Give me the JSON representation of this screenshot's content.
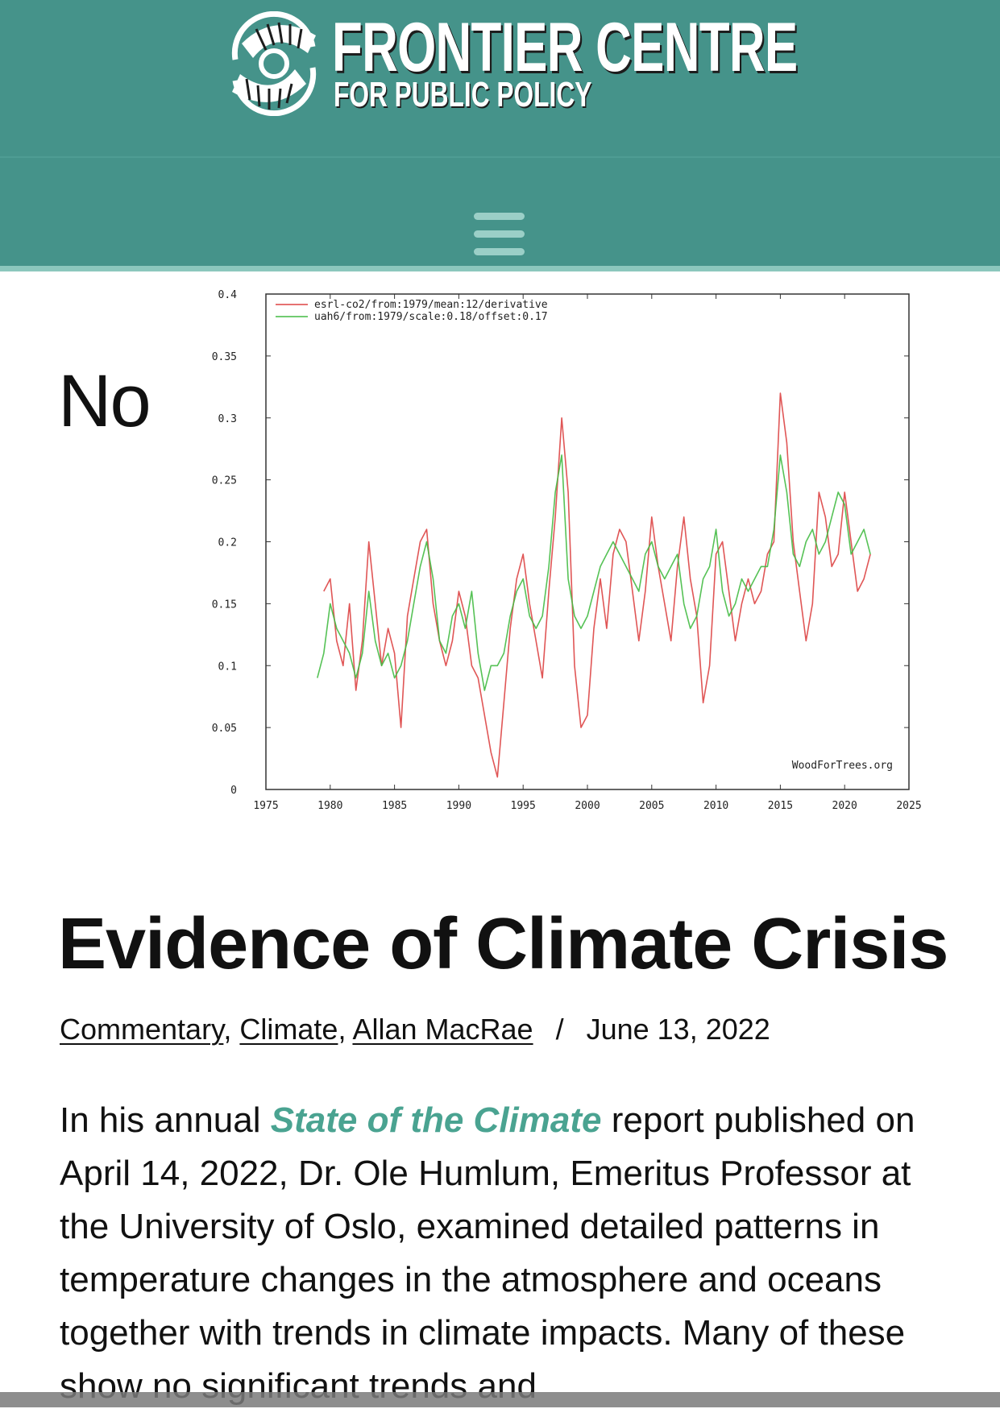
{
  "site": {
    "name_line1": "FRONTIER CENTRE",
    "name_line2": "FOR PUBLIC POLICY",
    "logo_icon": "swirl-logo-icon",
    "brand_color": "#45938a",
    "menu_icon": "hamburger-menu-icon"
  },
  "article": {
    "label": "No",
    "title": "Evidence of Climate Crisis",
    "categories": [
      "Commentary",
      "Climate"
    ],
    "author": "Allan MacRae",
    "separator": "/",
    "date": "June 13, 2022",
    "body_pre": "In his annual ",
    "body_link": "State of the Climate",
    "body_post": " report published on April 14, 2022, Dr. Ole Humlum, Emeritus Professor at the University of Oslo, examined detailed patterns in temperature changes in the atmosphere and oceans together with trends in climate impacts. Many of these show no significant trends and",
    "link_color": "#4aa391"
  },
  "chart_data": {
    "type": "line",
    "xlim": [
      1975,
      2025
    ],
    "ylim": [
      0,
      0.4
    ],
    "x_ticks": [
      "1975",
      "1980",
      "1985",
      "1990",
      "1995",
      "2000",
      "2005",
      "2010",
      "2015",
      "2020",
      "2025"
    ],
    "y_ticks": [
      "0",
      "0.05",
      "0.1",
      "0.15",
      "0.2",
      "0.25",
      "0.3",
      "0.35",
      "0.4"
    ],
    "legend_placement": "top-left",
    "watermark": "WoodForTrees.org",
    "series": [
      {
        "name": "esrl-co2/from:1979/mean:12/derivative",
        "color": "#dd4444",
        "x": [
          1979.5,
          1980,
          1980.5,
          1981,
          1981.5,
          1982,
          1982.5,
          1983,
          1983.5,
          1984,
          1984.5,
          1985,
          1985.5,
          1986,
          1986.5,
          1987,
          1987.5,
          1988,
          1988.5,
          1989,
          1989.5,
          1990,
          1990.5,
          1991,
          1991.5,
          1992,
          1992.5,
          1993,
          1993.5,
          1994,
          1994.5,
          1995,
          1995.5,
          1996,
          1996.5,
          1997,
          1997.5,
          1998,
          1998.5,
          1999,
          1999.5,
          2000,
          2000.5,
          2001,
          2001.5,
          2002,
          2002.5,
          2003,
          2003.5,
          2004,
          2004.5,
          2005,
          2005.5,
          2006,
          2006.5,
          2007,
          2007.5,
          2008,
          2008.5,
          2009,
          2009.5,
          2010,
          2010.5,
          2011,
          2011.5,
          2012,
          2012.5,
          2013,
          2013.5,
          2014,
          2014.5,
          2015,
          2015.5,
          2016,
          2016.5,
          2017,
          2017.5,
          2018,
          2018.5,
          2019,
          2019.5,
          2020,
          2020.5,
          2021,
          2021.5,
          2022
        ],
        "y": [
          0.16,
          0.17,
          0.12,
          0.1,
          0.15,
          0.08,
          0.12,
          0.2,
          0.15,
          0.1,
          0.13,
          0.11,
          0.05,
          0.14,
          0.17,
          0.2,
          0.21,
          0.15,
          0.12,
          0.1,
          0.12,
          0.16,
          0.14,
          0.1,
          0.09,
          0.06,
          0.03,
          0.01,
          0.07,
          0.13,
          0.17,
          0.19,
          0.15,
          0.12,
          0.09,
          0.16,
          0.22,
          0.3,
          0.24,
          0.1,
          0.05,
          0.06,
          0.13,
          0.17,
          0.13,
          0.19,
          0.21,
          0.2,
          0.16,
          0.12,
          0.16,
          0.22,
          0.18,
          0.15,
          0.12,
          0.18,
          0.22,
          0.17,
          0.14,
          0.07,
          0.1,
          0.19,
          0.2,
          0.16,
          0.12,
          0.15,
          0.17,
          0.15,
          0.16,
          0.19,
          0.2,
          0.32,
          0.28,
          0.2,
          0.16,
          0.12,
          0.15,
          0.24,
          0.22,
          0.18,
          0.19,
          0.24,
          0.2,
          0.16,
          0.17,
          0.19
        ]
      },
      {
        "name": "uah6/from:1979/scale:0.18/offset:0.17",
        "color": "#44bb44",
        "x": [
          1979,
          1979.5,
          1980,
          1980.5,
          1981,
          1981.5,
          1982,
          1982.5,
          1983,
          1983.5,
          1984,
          1984.5,
          1985,
          1985.5,
          1986,
          1986.5,
          1987,
          1987.5,
          1988,
          1988.5,
          1989,
          1989.5,
          1990,
          1990.5,
          1991,
          1991.5,
          1992,
          1992.5,
          1993,
          1993.5,
          1994,
          1994.5,
          1995,
          1995.5,
          1996,
          1996.5,
          1997,
          1997.5,
          1998,
          1998.5,
          1999,
          1999.5,
          2000,
          2000.5,
          2001,
          2001.5,
          2002,
          2002.5,
          2003,
          2003.5,
          2004,
          2004.5,
          2005,
          2005.5,
          2006,
          2006.5,
          2007,
          2007.5,
          2008,
          2008.5,
          2009,
          2009.5,
          2010,
          2010.5,
          2011,
          2011.5,
          2012,
          2012.5,
          2013,
          2013.5,
          2014,
          2014.5,
          2015,
          2015.5,
          2016,
          2016.5,
          2017,
          2017.5,
          2018,
          2018.5,
          2019,
          2019.5,
          2020,
          2020.5,
          2021,
          2021.5,
          2022
        ],
        "y": [
          0.09,
          0.11,
          0.15,
          0.13,
          0.12,
          0.11,
          0.09,
          0.11,
          0.16,
          0.12,
          0.1,
          0.11,
          0.09,
          0.1,
          0.12,
          0.15,
          0.18,
          0.2,
          0.17,
          0.12,
          0.11,
          0.14,
          0.15,
          0.13,
          0.16,
          0.11,
          0.08,
          0.1,
          0.1,
          0.11,
          0.14,
          0.16,
          0.17,
          0.14,
          0.13,
          0.14,
          0.18,
          0.24,
          0.27,
          0.17,
          0.14,
          0.13,
          0.14,
          0.16,
          0.18,
          0.19,
          0.2,
          0.19,
          0.18,
          0.17,
          0.16,
          0.19,
          0.2,
          0.18,
          0.17,
          0.18,
          0.19,
          0.15,
          0.13,
          0.14,
          0.17,
          0.18,
          0.21,
          0.16,
          0.14,
          0.15,
          0.17,
          0.16,
          0.17,
          0.18,
          0.18,
          0.21,
          0.27,
          0.24,
          0.19,
          0.18,
          0.2,
          0.21,
          0.19,
          0.2,
          0.22,
          0.24,
          0.23,
          0.19,
          0.2,
          0.21,
          0.19
        ]
      }
    ]
  }
}
